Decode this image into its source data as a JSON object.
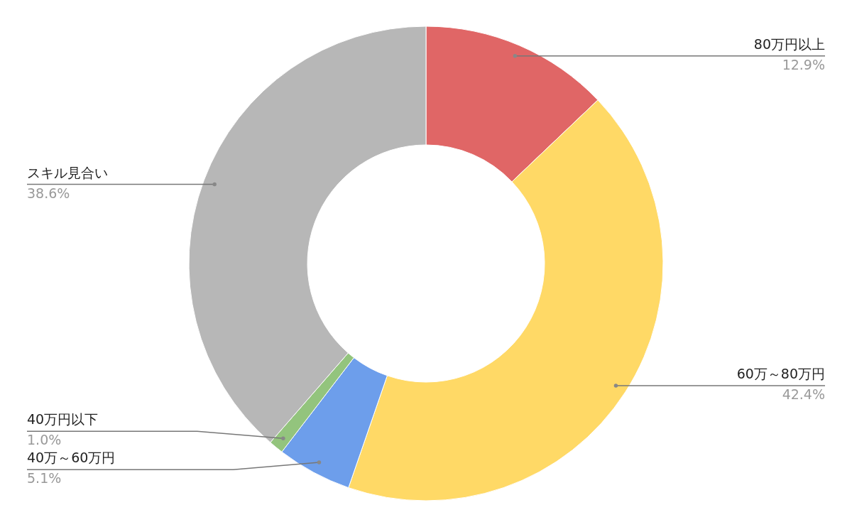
{
  "chart_data": {
    "type": "donut",
    "categories": [
      "80万円以上",
      "60万～80万円",
      "40万～60万円",
      "40万円以下",
      "スキル見合い"
    ],
    "values": [
      12.9,
      42.4,
      5.1,
      1.0,
      38.6
    ],
    "colors": [
      "#e06666",
      "#ffd966",
      "#6d9eeb",
      "#93c47d",
      "#b7b7b7"
    ],
    "value_labels": [
      "12.9%",
      "42.4%",
      "5.1%",
      "1.0%",
      "38.6%"
    ]
  }
}
